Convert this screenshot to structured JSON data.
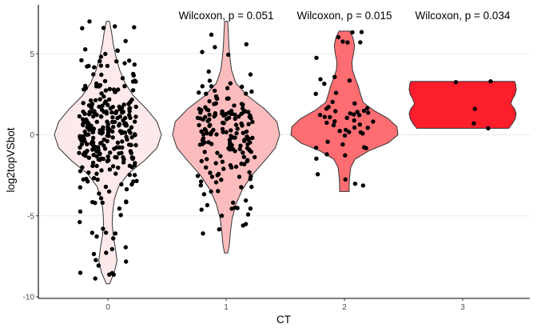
{
  "chart_data": {
    "type": "violin",
    "xlabel": "CT",
    "ylabel": "log2topVSbot",
    "categories": [
      "0",
      "1",
      "2",
      "3"
    ],
    "yticks": [
      -10,
      -5,
      0,
      5
    ],
    "ytick_labels": [
      "-10",
      "-5",
      "0",
      "5"
    ],
    "ylim": [
      -10,
      8
    ],
    "grid": "horizontal major",
    "fill_colors": [
      "#fde9e9",
      "#fcbcbd",
      "#fe6d72",
      "#fc1e2b"
    ],
    "point_color": "#000000",
    "annotations": [
      {
        "text": "Wilcoxon, p = 0.051",
        "category": "1"
      },
      {
        "text": "Wilcoxon, p = 0.015",
        "category": "2"
      },
      {
        "text": "Wilcoxon, p = 0.034",
        "category": "3"
      }
    ],
    "series": [
      {
        "category": "0",
        "range": [
          -9.2,
          7.0
        ],
        "density": [
          [
            -9.2,
            0.03
          ],
          [
            -8.5,
            0.12
          ],
          [
            -7.8,
            0.17
          ],
          [
            -7.0,
            0.14
          ],
          [
            -6.2,
            0.1
          ],
          [
            -5.5,
            0.08
          ],
          [
            -4.8,
            0.09
          ],
          [
            -4.0,
            0.12
          ],
          [
            -3.2,
            0.2
          ],
          [
            -2.4,
            0.38
          ],
          [
            -1.6,
            0.68
          ],
          [
            -0.8,
            0.92
          ],
          [
            0.0,
            1.0
          ],
          [
            0.8,
            0.92
          ],
          [
            1.6,
            0.72
          ],
          [
            2.4,
            0.48
          ],
          [
            3.2,
            0.32
          ],
          [
            4.0,
            0.22
          ],
          [
            4.8,
            0.15
          ],
          [
            5.6,
            0.1
          ],
          [
            6.3,
            0.07
          ],
          [
            7.0,
            0.03
          ]
        ],
        "n": 300
      },
      {
        "category": "1",
        "range": [
          -7.3,
          7.0
        ],
        "density": [
          [
            -7.3,
            0.03
          ],
          [
            -6.8,
            0.06
          ],
          [
            -6.0,
            0.08
          ],
          [
            -5.2,
            0.11
          ],
          [
            -4.3,
            0.18
          ],
          [
            -3.4,
            0.3
          ],
          [
            -2.5,
            0.48
          ],
          [
            -1.6,
            0.72
          ],
          [
            -0.8,
            0.92
          ],
          [
            0.0,
            1.0
          ],
          [
            0.8,
            0.95
          ],
          [
            1.6,
            0.72
          ],
          [
            2.4,
            0.4
          ],
          [
            3.2,
            0.18
          ],
          [
            4.0,
            0.1
          ],
          [
            4.8,
            0.07
          ],
          [
            5.5,
            0.05
          ],
          [
            6.3,
            0.04
          ],
          [
            7.0,
            0.03
          ]
        ],
        "n": 180
      },
      {
        "category": "2",
        "range": [
          -3.5,
          6.4
        ],
        "density": [
          [
            -3.5,
            0.09
          ],
          [
            -3.0,
            0.09
          ],
          [
            -2.5,
            0.1
          ],
          [
            -2.0,
            0.12
          ],
          [
            -1.5,
            0.2
          ],
          [
            -1.0,
            0.45
          ],
          [
            -0.5,
            0.82
          ],
          [
            0.0,
            1.0
          ],
          [
            0.5,
            0.98
          ],
          [
            1.0,
            0.82
          ],
          [
            1.5,
            0.55
          ],
          [
            2.0,
            0.35
          ],
          [
            2.5,
            0.3
          ],
          [
            3.0,
            0.26
          ],
          [
            3.5,
            0.2
          ],
          [
            4.0,
            0.15
          ],
          [
            4.5,
            0.14
          ],
          [
            5.0,
            0.17
          ],
          [
            5.5,
            0.19
          ],
          [
            6.0,
            0.16
          ],
          [
            6.4,
            0.1
          ]
        ],
        "n": 55
      },
      {
        "category": "3",
        "range": [
          0.4,
          3.3
        ],
        "density": [
          [
            0.4,
            0.86
          ],
          [
            0.7,
            0.93
          ],
          [
            1.0,
            0.98
          ],
          [
            1.3,
            1.0
          ],
          [
            1.6,
            0.97
          ],
          [
            1.9,
            0.9
          ],
          [
            2.2,
            0.93
          ],
          [
            2.5,
            0.98
          ],
          [
            2.8,
            1.0
          ],
          [
            3.1,
            0.99
          ],
          [
            3.3,
            0.97
          ]
        ],
        "n": 5,
        "points": [
          3.3,
          3.25,
          1.6,
          0.7,
          0.4
        ]
      }
    ]
  }
}
